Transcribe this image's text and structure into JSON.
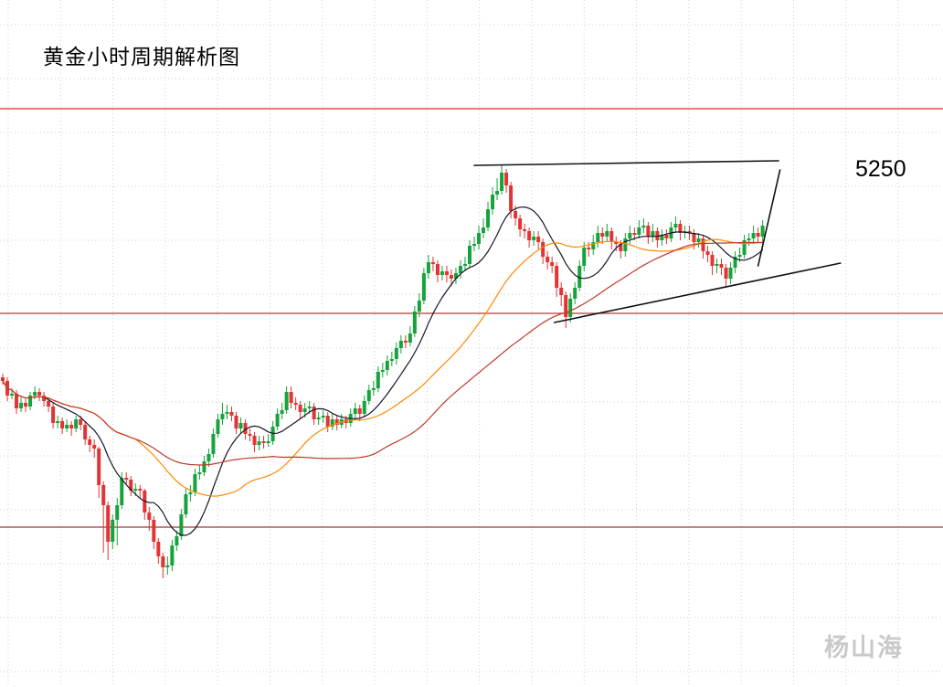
{
  "page": {
    "title": "黄金小时周期解析图",
    "price_label": "5250",
    "watermark": "杨山海",
    "background": "#ffffff"
  },
  "chart_data": {
    "type": "candlestick",
    "title": "黄金小时周期解析图",
    "annotations": [
      {
        "text": "5250",
        "meaning": "resistance-level-label"
      }
    ],
    "legend": "none",
    "axes_visible": false,
    "grid": {
      "on": true,
      "color": "#cfcfcf",
      "v_start": 9,
      "v_step": 57.3,
      "h_start": 27,
      "h_step": 59
    },
    "up_color": "#17a33c",
    "down_color": "#e23434",
    "ylim": [
      4966.5,
      5342.5
    ],
    "x_slots": 206,
    "horizontal_levels": [
      {
        "price": 5283,
        "color": "#f52222"
      },
      {
        "price": 5171,
        "color": "#b53a3a"
      },
      {
        "price": 5054,
        "color": "#9e3939"
      }
    ],
    "moving_averages": [
      {
        "period": 10,
        "color": "#15152a"
      },
      {
        "period": 30,
        "color": "#ff8800"
      },
      {
        "period": 60,
        "color": "#c0392b"
      }
    ],
    "trend_lines": [
      {
        "i1": 103,
        "p1": 5252,
        "i2": 169.5,
        "p2": 5254.5,
        "color": "#111111"
      },
      {
        "i1": 120.5,
        "p1": 5166,
        "i2": 183,
        "p2": 5198.5,
        "color": "#111111"
      },
      {
        "i1": 165,
        "p1": 5197,
        "i2": 169.8,
        "p2": 5249.5,
        "color": "#111111"
      }
    ],
    "candles": [
      [
        5136,
        5138,
        5132,
        5134
      ],
      [
        5134,
        5136,
        5123,
        5126
      ],
      [
        5126,
        5130,
        5124,
        5127
      ],
      [
        5127,
        5129,
        5116,
        5119
      ],
      [
        5119,
        5125,
        5117,
        5122
      ],
      [
        5122,
        5124,
        5117,
        5120
      ],
      [
        5120,
        5128,
        5118,
        5126
      ],
      [
        5126,
        5131,
        5124,
        5128
      ],
      [
        5128,
        5130,
        5123,
        5126
      ],
      [
        5126,
        5128,
        5120,
        5123
      ],
      [
        5123,
        5125,
        5117,
        5120
      ],
      [
        5120,
        5122,
        5108,
        5111
      ],
      [
        5111,
        5115,
        5108,
        5112
      ],
      [
        5112,
        5114,
        5105,
        5108
      ],
      [
        5108,
        5113,
        5106,
        5110
      ],
      [
        5110,
        5112,
        5104,
        5108
      ],
      [
        5108,
        5115,
        5106,
        5113
      ],
      [
        5113,
        5115,
        5107,
        5110
      ],
      [
        5110,
        5112,
        5099,
        5102
      ],
      [
        5102,
        5104,
        5095,
        5099
      ],
      [
        5099,
        5102,
        5092,
        5097
      ],
      [
        5097,
        5098,
        5070,
        5077
      ],
      [
        5077,
        5079,
        5040,
        5066
      ],
      [
        5066,
        5068,
        5036,
        5046
      ],
      [
        5046,
        5061,
        5042,
        5058
      ],
      [
        5058,
        5070,
        5044,
        5066
      ],
      [
        5066,
        5084,
        5064,
        5081
      ],
      [
        5081,
        5084,
        5077,
        5080
      ],
      [
        5080,
        5082,
        5071,
        5074
      ],
      [
        5074,
        5078,
        5071,
        5075
      ],
      [
        5075,
        5077,
        5070,
        5074
      ],
      [
        5074,
        5075,
        5058,
        5062
      ],
      [
        5062,
        5065,
        5052,
        5058
      ],
      [
        5058,
        5060,
        5042,
        5046
      ],
      [
        5046,
        5048,
        5034,
        5038
      ],
      [
        5038,
        5040,
        5026,
        5032
      ],
      [
        5032,
        5038,
        5028,
        5033
      ],
      [
        5033,
        5047,
        5030,
        5044
      ],
      [
        5044,
        5052,
        5041,
        5049
      ],
      [
        5049,
        5064,
        5047,
        5061
      ],
      [
        5061,
        5075,
        5059,
        5072
      ],
      [
        5072,
        5077,
        5068,
        5073
      ],
      [
        5073,
        5086,
        5071,
        5083
      ],
      [
        5083,
        5088,
        5080,
        5084
      ],
      [
        5084,
        5093,
        5082,
        5090
      ],
      [
        5090,
        5097,
        5087,
        5094
      ],
      [
        5094,
        5108,
        5092,
        5105
      ],
      [
        5105,
        5116,
        5103,
        5113
      ],
      [
        5113,
        5122,
        5110,
        5116
      ],
      [
        5116,
        5121,
        5113,
        5117
      ],
      [
        5117,
        5120,
        5112,
        5115
      ],
      [
        5115,
        5117,
        5105,
        5108
      ],
      [
        5108,
        5114,
        5105,
        5111
      ],
      [
        5111,
        5113,
        5102,
        5105
      ],
      [
        5105,
        5108,
        5101,
        5104
      ],
      [
        5104,
        5106,
        5095,
        5099
      ],
      [
        5099,
        5104,
        5096,
        5101
      ],
      [
        5101,
        5104,
        5097,
        5100
      ],
      [
        5100,
        5105,
        5098,
        5101
      ],
      [
        5101,
        5112,
        5099,
        5109
      ],
      [
        5109,
        5119,
        5107,
        5116
      ],
      [
        5116,
        5122,
        5113,
        5118
      ],
      [
        5118,
        5131,
        5116,
        5128
      ],
      [
        5128,
        5131,
        5119,
        5122
      ],
      [
        5122,
        5125,
        5118,
        5121
      ],
      [
        5121,
        5123,
        5113,
        5117
      ],
      [
        5117,
        5122,
        5114,
        5119
      ],
      [
        5119,
        5123,
        5116,
        5120
      ],
      [
        5120,
        5122,
        5110,
        5113
      ],
      [
        5113,
        5117,
        5110,
        5114
      ],
      [
        5114,
        5118,
        5111,
        5115
      ],
      [
        5115,
        5117,
        5106,
        5109
      ],
      [
        5109,
        5116,
        5107,
        5113
      ],
      [
        5113,
        5115,
        5107,
        5110
      ],
      [
        5110,
        5116,
        5108,
        5113
      ],
      [
        5113,
        5115,
        5108,
        5111
      ],
      [
        5111,
        5119,
        5109,
        5116
      ],
      [
        5116,
        5122,
        5113,
        5119
      ],
      [
        5119,
        5121,
        5112,
        5116
      ],
      [
        5116,
        5126,
        5114,
        5123
      ],
      [
        5123,
        5132,
        5121,
        5129
      ],
      [
        5129,
        5134,
        5126,
        5130
      ],
      [
        5130,
        5142,
        5128,
        5139
      ],
      [
        5139,
        5144,
        5136,
        5140
      ],
      [
        5140,
        5148,
        5137,
        5145
      ],
      [
        5145,
        5150,
        5142,
        5146
      ],
      [
        5146,
        5155,
        5143,
        5152
      ],
      [
        5152,
        5159,
        5149,
        5156
      ],
      [
        5156,
        5159,
        5152,
        5155
      ],
      [
        5155,
        5164,
        5153,
        5160
      ],
      [
        5160,
        5175,
        5158,
        5172
      ],
      [
        5172,
        5182,
        5169,
        5178
      ],
      [
        5178,
        5196,
        5176,
        5193
      ],
      [
        5193,
        5203,
        5190,
        5199
      ],
      [
        5199,
        5202,
        5194,
        5198
      ],
      [
        5198,
        5200,
        5188,
        5192
      ],
      [
        5192,
        5197,
        5189,
        5194
      ],
      [
        5194,
        5197,
        5188,
        5192
      ],
      [
        5192,
        5195,
        5186,
        5190
      ],
      [
        5190,
        5196,
        5187,
        5193
      ],
      [
        5193,
        5200,
        5190,
        5197
      ],
      [
        5197,
        5202,
        5194,
        5198
      ],
      [
        5198,
        5211,
        5196,
        5208
      ],
      [
        5208,
        5213,
        5205,
        5209
      ],
      [
        5209,
        5219,
        5206,
        5215
      ],
      [
        5215,
        5223,
        5212,
        5218
      ],
      [
        5218,
        5232,
        5216,
        5228
      ],
      [
        5228,
        5240,
        5225,
        5236
      ],
      [
        5236,
        5245,
        5233,
        5238
      ],
      [
        5238,
        5252,
        5236,
        5248
      ],
      [
        5248,
        5250,
        5237,
        5241
      ],
      [
        5241,
        5243,
        5223,
        5227
      ],
      [
        5227,
        5230,
        5219,
        5223
      ],
      [
        5223,
        5225,
        5213,
        5217
      ],
      [
        5217,
        5220,
        5212,
        5216
      ],
      [
        5216,
        5218,
        5207,
        5211
      ],
      [
        5211,
        5216,
        5208,
        5213
      ],
      [
        5213,
        5216,
        5206,
        5210
      ],
      [
        5210,
        5212,
        5198,
        5202
      ],
      [
        5202,
        5205,
        5195,
        5199
      ],
      [
        5199,
        5202,
        5193,
        5197
      ],
      [
        5197,
        5199,
        5180,
        5185
      ],
      [
        5185,
        5188,
        5175,
        5181
      ],
      [
        5181,
        5183,
        5163,
        5169
      ],
      [
        5169,
        5182,
        5166,
        5179
      ],
      [
        5179,
        5188,
        5176,
        5185
      ],
      [
        5185,
        5200,
        5183,
        5197
      ],
      [
        5197,
        5210,
        5194,
        5207
      ],
      [
        5207,
        5210,
        5202,
        5206
      ],
      [
        5206,
        5214,
        5203,
        5210
      ],
      [
        5210,
        5219,
        5207,
        5215
      ],
      [
        5215,
        5218,
        5209,
        5213
      ],
      [
        5213,
        5220,
        5210,
        5216
      ],
      [
        5216,
        5218,
        5206,
        5210
      ],
      [
        5210,
        5213,
        5205,
        5209
      ],
      [
        5209,
        5211,
        5201,
        5205
      ],
      [
        5205,
        5215,
        5202,
        5212
      ],
      [
        5212,
        5219,
        5209,
        5215
      ],
      [
        5215,
        5218,
        5211,
        5214
      ],
      [
        5214,
        5222,
        5212,
        5218
      ],
      [
        5218,
        5223,
        5215,
        5219
      ],
      [
        5219,
        5221,
        5209,
        5213
      ],
      [
        5213,
        5220,
        5210,
        5216
      ],
      [
        5216,
        5218,
        5207,
        5211
      ],
      [
        5211,
        5217,
        5208,
        5214
      ],
      [
        5214,
        5217,
        5209,
        5212
      ],
      [
        5212,
        5221,
        5210,
        5218
      ],
      [
        5218,
        5224,
        5215,
        5220
      ],
      [
        5220,
        5222,
        5211,
        5215
      ],
      [
        5215,
        5219,
        5212,
        5216
      ],
      [
        5216,
        5219,
        5211,
        5215
      ],
      [
        5215,
        5217,
        5206,
        5210
      ],
      [
        5210,
        5215,
        5207,
        5212
      ],
      [
        5212,
        5214,
        5201,
        5205
      ],
      [
        5205,
        5208,
        5199,
        5203
      ],
      [
        5203,
        5205,
        5192,
        5197
      ],
      [
        5197,
        5201,
        5193,
        5198
      ],
      [
        5198,
        5201,
        5192,
        5196
      ],
      [
        5196,
        5198,
        5185,
        5190
      ],
      [
        5190,
        5199,
        5187,
        5196
      ],
      [
        5196,
        5205,
        5193,
        5202
      ],
      [
        5202,
        5207,
        5199,
        5203
      ],
      [
        5203,
        5214,
        5201,
        5211
      ],
      [
        5211,
        5215,
        5208,
        5212
      ],
      [
        5212,
        5219,
        5209,
        5215
      ],
      [
        5215,
        5218,
        5210,
        5213
      ],
      [
        5213,
        5222,
        5210,
        5219
      ]
    ]
  }
}
